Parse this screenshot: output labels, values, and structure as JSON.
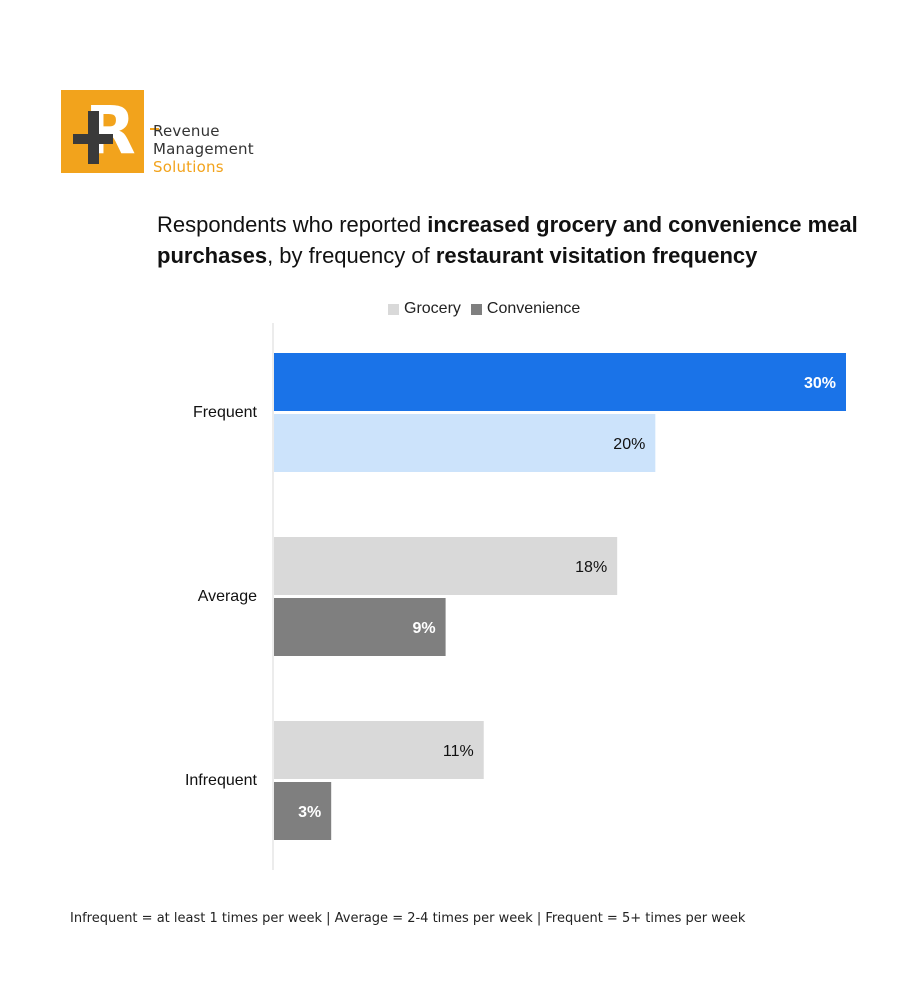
{
  "logo": {
    "line1": "Revenue",
    "line2": "Management",
    "line3": "Solutions",
    "mark": "R",
    "brand_color": "#f2a31c"
  },
  "title": {
    "part1": "Respondents who reported ",
    "bold1": "increased grocery and convenience meal purchases",
    "part2": ", by frequency of ",
    "bold2": "restaurant visitation frequency"
  },
  "footnote": "Infrequent = at least 1 times per week | Average = 2-4 times per week | Frequent = 5+ times per week",
  "chart_data": {
    "type": "bar",
    "orientation": "horizontal",
    "categories": [
      "Frequent",
      "Average",
      "Infrequent"
    ],
    "series": [
      {
        "name": "Grocery",
        "values": [
          20,
          18,
          11
        ],
        "color": "#d9d9d9"
      },
      {
        "name": "Convenience",
        "values": [
          30,
          9,
          3
        ],
        "color": "#7f7f7f"
      }
    ],
    "highlight_colors": {
      "Frequent": {
        "Convenience": "#1a73e8",
        "Grocery": "#cce3fb"
      }
    },
    "data_labels": [
      [
        "20%",
        "30%"
      ],
      [
        "18%",
        "9%"
      ],
      [
        "11%",
        "3%"
      ]
    ],
    "legend_position": "top",
    "xlim": [
      0,
      30
    ],
    "grid": false
  }
}
